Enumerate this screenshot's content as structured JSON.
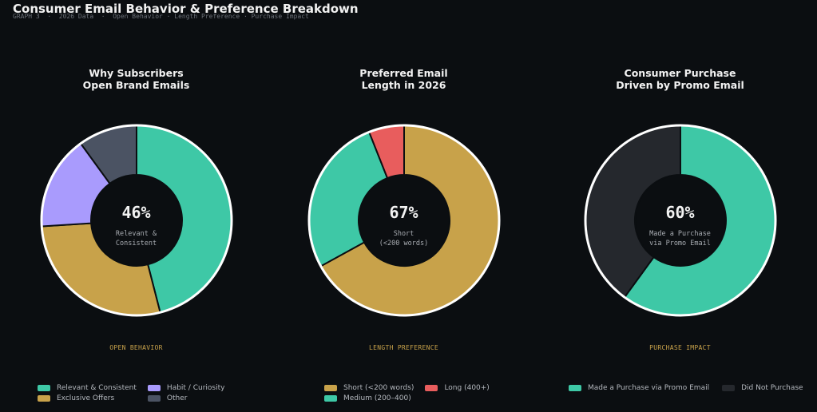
{
  "page": {
    "title": "Consumer Email Behavior & Preference Breakdown",
    "subtitle": "GRAPH 3  ·  2026 Data  ·  Open Behavior · Length Preference · Purchase Impact"
  },
  "colors": {
    "background": "#0b0e11",
    "teal": "#3ec8a6",
    "gold": "#c8a24a",
    "lavender": "#a99bfd",
    "slate": "#4b5363",
    "red": "#e85d5d",
    "dark_gray": "#25282d",
    "outline": "#ffffff"
  },
  "chart_data": [
    {
      "type": "pie",
      "title": [
        "Why Subscribers",
        "Open Brand Emails"
      ],
      "center_value": "46%",
      "center_label": [
        "Relevant &",
        "Consistent"
      ],
      "section_label": "OPEN BEHAVIOR",
      "slices": [
        {
          "label": "Relevant & Consistent",
          "value": 46,
          "color": "#3ec8a6"
        },
        {
          "label": "Exclusive Offers",
          "value": 28,
          "color": "#c8a24a"
        },
        {
          "label": "Habit / Curiosity",
          "value": 16,
          "color": "#a99bfd"
        },
        {
          "label": "Other",
          "value": 10,
          "color": "#4b5363"
        }
      ],
      "legend": [
        {
          "label": "Relevant & Consistent",
          "color": "#3ec8a6"
        },
        {
          "label": "Habit / Curiosity",
          "color": "#a99bfd"
        },
        {
          "label": "Exclusive Offers",
          "color": "#c8a24a"
        },
        {
          "label": "Other",
          "color": "#4b5363"
        }
      ]
    },
    {
      "type": "pie",
      "title": [
        "Preferred Email",
        "Length in 2026"
      ],
      "center_value": "67%",
      "center_label": [
        "Short",
        "(<200 words)"
      ],
      "section_label": "LENGTH PREFERENCE",
      "slices": [
        {
          "label": "Short (<200 words)",
          "value": 67,
          "color": "#c8a24a"
        },
        {
          "label": "Medium (200–400)",
          "value": 27,
          "color": "#3ec8a6"
        },
        {
          "label": "Long (400+)",
          "value": 6,
          "color": "#e85d5d"
        }
      ],
      "legend": [
        {
          "label": "Short (<200 words)",
          "color": "#c8a24a"
        },
        {
          "label": "Long (400+)",
          "color": "#e85d5d"
        },
        {
          "label": "Medium (200–400)",
          "color": "#3ec8a6"
        }
      ]
    },
    {
      "type": "pie",
      "title": [
        "Consumer Purchase",
        "Driven by Promo Email"
      ],
      "center_value": "60%",
      "center_label": [
        "Made a Purchase",
        "via Promo Email"
      ],
      "section_label": "PURCHASE IMPACT",
      "slices": [
        {
          "label": "Made a Purchase via Promo Email",
          "value": 60,
          "color": "#3ec8a6"
        },
        {
          "label": "Did Not Purchase",
          "value": 40,
          "color": "#25282d"
        }
      ],
      "legend": [
        {
          "label": "Made a Purchase via Promo Email",
          "color": "#3ec8a6"
        },
        {
          "label": "Did Not Purchase",
          "color": "#25282d"
        }
      ]
    }
  ]
}
